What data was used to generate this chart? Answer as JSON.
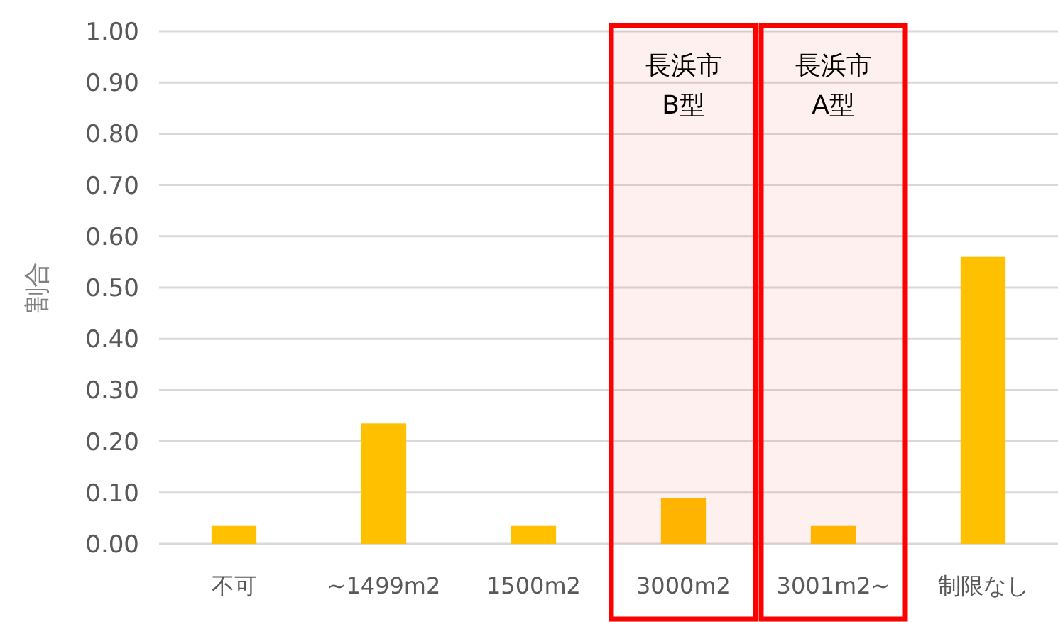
{
  "chart_data": {
    "type": "bar",
    "ylabel": "割合",
    "categories": [
      "不可",
      "~1499m2",
      "1500m2",
      "3000m2",
      "3001m2~",
      "制限なし"
    ],
    "values": [
      0.035,
      0.235,
      0.035,
      0.09,
      0.035,
      0.56
    ],
    "color": "#ffc000",
    "ylim": [
      0,
      1
    ],
    "yticks": [
      {
        "value": 0,
        "label": "0.00"
      },
      {
        "value": 0.1,
        "label": "0.10"
      },
      {
        "value": 0.2,
        "label": "0.20"
      },
      {
        "value": 0.3,
        "label": "0.30"
      },
      {
        "value": 0.4,
        "label": "0.40"
      },
      {
        "value": 0.5,
        "label": "0.50"
      },
      {
        "value": 0.6,
        "label": "0.60"
      },
      {
        "value": 0.7,
        "label": "0.70"
      },
      {
        "value": 0.8,
        "label": "0.80"
      },
      {
        "value": 0.9,
        "label": "0.90"
      },
      {
        "value": 1,
        "label": "1.00"
      }
    ],
    "grid": "y",
    "bands": [
      {
        "axis": "x",
        "from": "3000m2",
        "to": "3000m2",
        "label": "長浜市\nB型",
        "color": "#ff0000"
      },
      {
        "axis": "x",
        "from": "3001m2~",
        "to": "3001m2~",
        "label": "長浜市\nA型",
        "color": "#ff0000"
      }
    ]
  }
}
